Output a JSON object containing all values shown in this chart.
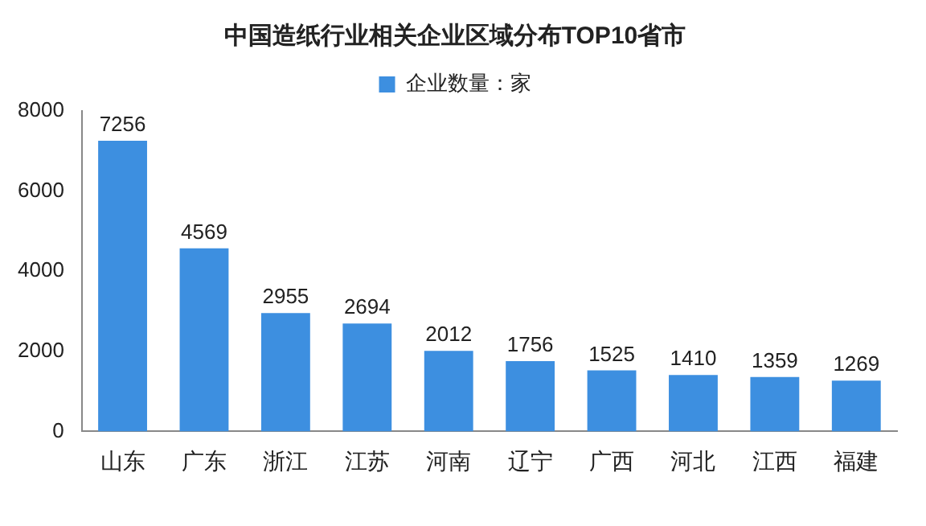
{
  "chart_data": {
    "type": "bar",
    "title": "中国造纸行业相关企业区域分布TOP10省市",
    "categories": [
      "山东",
      "广东",
      "浙江",
      "江苏",
      "河南",
      "辽宁",
      "广西",
      "河北",
      "江西",
      "福建"
    ],
    "series": [
      {
        "name": "企业数量：家",
        "color": "#3d8fe0",
        "values": [
          7256,
          4569,
          2955,
          2694,
          2012,
          1756,
          1525,
          1410,
          1359,
          1269
        ]
      }
    ],
    "ylim": [
      0,
      8000
    ],
    "yticks": [
      0,
      2000,
      4000,
      6000,
      8000
    ],
    "grid": false,
    "legend": "top",
    "data_labels": true
  }
}
